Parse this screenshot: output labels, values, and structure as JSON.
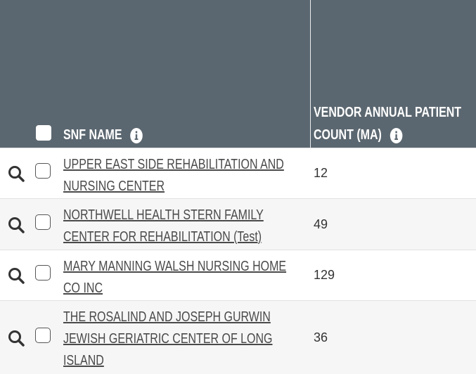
{
  "table": {
    "headers": [
      "SNF NAME",
      "VENDOR ANNUAL PATIENT COUNT (MA)"
    ],
    "rows": [
      [
        "UPPER EAST SIDE REHABILITATION AND NURSING CENTER",
        12
      ],
      [
        "NORTHWELL HEALTH STERN FAMILY CENTER FOR REHABILITATION (Test)",
        49
      ],
      [
        "MARY MANNING WALSH NURSING HOME CO INC",
        129
      ],
      [
        "THE ROSALIND AND JOSEPH GURWIN JEWISH GERIATRIC CENTER OF LONG ISLAND",
        36
      ]
    ]
  }
}
